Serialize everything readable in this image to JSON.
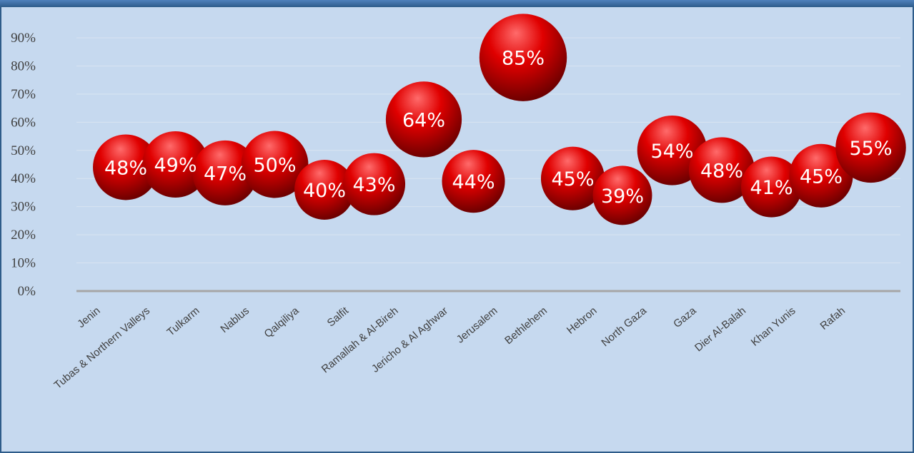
{
  "chart_data": {
    "type": "bubble",
    "title": "",
    "xlabel": "",
    "ylabel": "",
    "ylim": [
      0,
      0.9
    ],
    "yticks": [
      "0%",
      "10%",
      "20%",
      "30%",
      "40%",
      "50%",
      "60%",
      "70%",
      "80%",
      "90%"
    ],
    "grid": true,
    "legend": "none",
    "categories": [
      "Jenin",
      "Tubas & Northern Valleys",
      "Tulkarm",
      "Nablus",
      "Qalqiliya",
      "Salfit",
      "Ramallah & Al-Bireh",
      "Jericho & Al Aghwar",
      "Jerusalem",
      "Bethlehem",
      "Hebron",
      "North Gaza",
      "Gaza",
      "Dier Al-Balah",
      "Khan Yunis",
      "Rafah"
    ],
    "values": [
      0.44,
      0.45,
      0.42,
      0.45,
      0.36,
      0.38,
      0.61,
      0.39,
      0.83,
      0.4,
      0.34,
      0.5,
      0.43,
      0.37,
      0.41,
      0.51
    ],
    "bubble_sizes": [
      0.48,
      0.49,
      0.47,
      0.5,
      0.4,
      0.43,
      0.64,
      0.44,
      0.85,
      0.45,
      0.39,
      0.54,
      0.48,
      0.41,
      0.45,
      0.55
    ],
    "data_labels": [
      "48%",
      "49%",
      "47%",
      "50%",
      "40%",
      "43%",
      "64%",
      "44%",
      "85%",
      "45%",
      "39%",
      "54%",
      "48%",
      "41%",
      "45%",
      "55%"
    ],
    "colors": {
      "bubble_light": "#ff6b6b",
      "bubble_mid": "#e00000",
      "bubble_dark": "#6e0000",
      "axis": "#a6a6a6",
      "grid": "#d9e4f1",
      "background": "#c6d9ef",
      "frame": "#2e5c8a"
    }
  }
}
